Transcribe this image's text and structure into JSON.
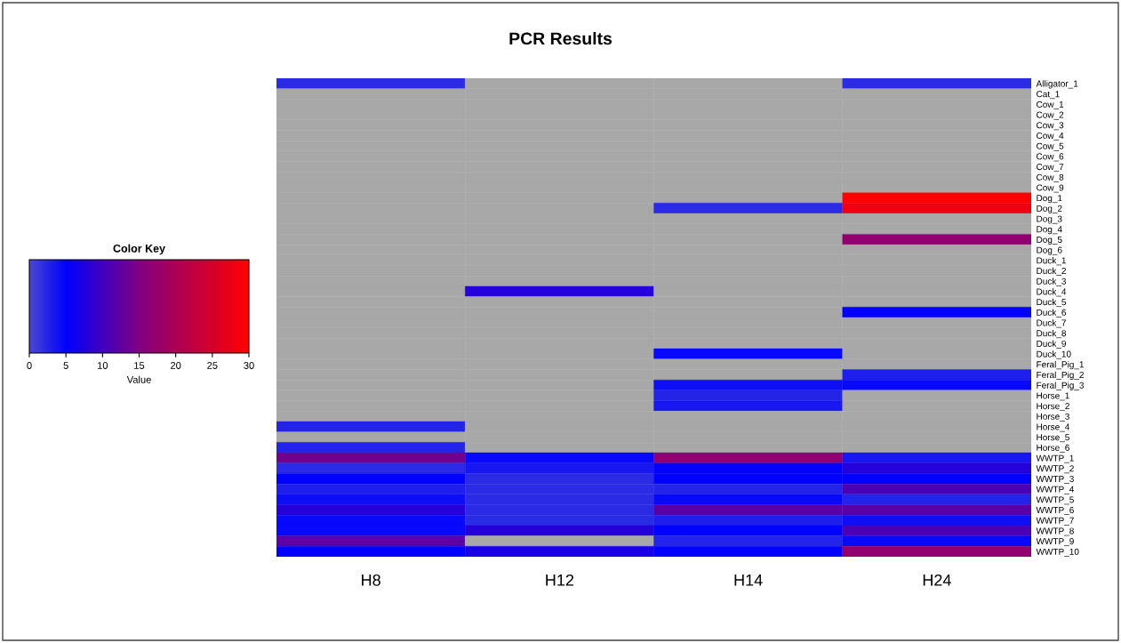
{
  "chart_data": {
    "type": "heatmap",
    "title": "PCR Results",
    "legend_title": "Color Key",
    "clabel": "Value",
    "categories": [
      "H8",
      "H12",
      "H14",
      "H24"
    ],
    "y_categories": [
      "Alligator_1",
      "Cat_1",
      "Cow_1",
      "Cow_2",
      "Cow_3",
      "Cow_4",
      "Cow_5",
      "Cow_6",
      "Cow_7",
      "Cow_8",
      "Cow_9",
      "Dog_1",
      "Dog_2",
      "Dog_3",
      "Dog_4",
      "Dog_5",
      "Dog_6",
      "Duck_1",
      "Duck_2",
      "Duck_3",
      "Duck_4",
      "Duck_5",
      "Duck_6",
      "Duck_7",
      "Duck_8",
      "Duck_9",
      "Duck_10",
      "Feral_Pig_1",
      "Feral_Pig_2",
      "Feral_Pig_3",
      "Horse_1",
      "Horse_2",
      "Horse_3",
      "Horse_4",
      "Horse_5",
      "Horse_6",
      "WWTP_1",
      "WWTP_2",
      "WWTP_3",
      "WWTP_4",
      "WWTP_5",
      "WWTP_6",
      "WWTP_7",
      "WWTP_8",
      "WWTP_9",
      "WWTP_10"
    ],
    "cells": [
      [
        2,
        null,
        null,
        2
      ],
      [
        null,
        null,
        null,
        null
      ],
      [
        null,
        null,
        null,
        null
      ],
      [
        null,
        null,
        null,
        null
      ],
      [
        null,
        null,
        null,
        null
      ],
      [
        null,
        null,
        null,
        null
      ],
      [
        null,
        null,
        null,
        null
      ],
      [
        null,
        null,
        null,
        null
      ],
      [
        null,
        null,
        null,
        null
      ],
      [
        null,
        null,
        null,
        null
      ],
      [
        null,
        null,
        null,
        null
      ],
      [
        null,
        null,
        null,
        30
      ],
      [
        null,
        null,
        2,
        28
      ],
      [
        null,
        null,
        null,
        null
      ],
      [
        null,
        null,
        null,
        null
      ],
      [
        null,
        null,
        null,
        17
      ],
      [
        null,
        null,
        null,
        null
      ],
      [
        null,
        null,
        null,
        null
      ],
      [
        null,
        null,
        null,
        null
      ],
      [
        null,
        null,
        null,
        null
      ],
      [
        null,
        8,
        null,
        null
      ],
      [
        null,
        null,
        null,
        null
      ],
      [
        null,
        null,
        null,
        5
      ],
      [
        null,
        null,
        null,
        null
      ],
      [
        null,
        null,
        null,
        null
      ],
      [
        null,
        null,
        null,
        null
      ],
      [
        null,
        null,
        4.5,
        null
      ],
      [
        null,
        null,
        null,
        null
      ],
      [
        null,
        null,
        null,
        3
      ],
      [
        null,
        null,
        4,
        4.5
      ],
      [
        null,
        null,
        2.5,
        null
      ],
      [
        null,
        null,
        3.5,
        null
      ],
      [
        null,
        null,
        null,
        null
      ],
      [
        2.5,
        null,
        null,
        null
      ],
      [
        null,
        null,
        null,
        null
      ],
      [
        2.5,
        null,
        null,
        null
      ],
      [
        14,
        4.5,
        17,
        3.5
      ],
      [
        2,
        3.5,
        5,
        8
      ],
      [
        5,
        2,
        5,
        5
      ],
      [
        3,
        2,
        2.5,
        11
      ],
      [
        4,
        2,
        4.5,
        2.5
      ],
      [
        8,
        2,
        12,
        12
      ],
      [
        4.5,
        2,
        3,
        4
      ],
      [
        4.5,
        8,
        5,
        11
      ],
      [
        12,
        null,
        2.5,
        4.5
      ],
      [
        5,
        7,
        5,
        17
      ]
    ],
    "clim": [
      0,
      30
    ],
    "cticks": [
      0,
      5,
      10,
      15,
      20,
      25,
      30
    ]
  }
}
